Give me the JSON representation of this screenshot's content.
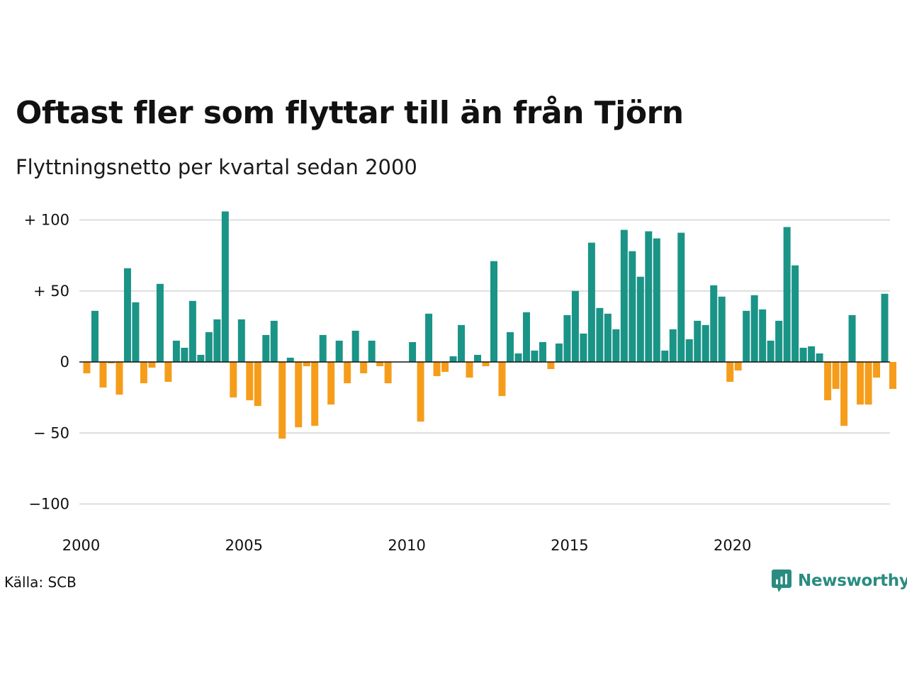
{
  "title": "Oftast fler som flyttar till än från Tjörn",
  "subtitle": "Flyttningsnetto per kvartal sedan 2000",
  "source": "Källa: SCB",
  "brand": {
    "name": "Newsworthy",
    "color": "#2a8c80",
    "icon": "newsworthy-logo-icon"
  },
  "colors": {
    "positive": "#1a9486",
    "negative": "#f59d1b",
    "grid": "#dddddd",
    "zero_line": "#111111"
  },
  "chart_data": {
    "type": "bar",
    "title": "Oftast fler som flyttar till än från Tjörn",
    "subtitle": "Flyttningsnetto per kvartal sedan 2000",
    "x_start": "2000 Q1",
    "x_interval": "quarter",
    "ylim": [
      -110,
      110
    ],
    "y_ticks": [
      {
        "value": 100,
        "label": "+ 100"
      },
      {
        "value": 50,
        "label": "+  50"
      },
      {
        "value": 0,
        "label": "0"
      },
      {
        "value": -50,
        "label": "− 50"
      },
      {
        "value": -100,
        "label": "−100"
      }
    ],
    "x_ticks": [
      {
        "year": 2000,
        "label": "2000"
      },
      {
        "year": 2005,
        "label": "2005"
      },
      {
        "year": 2010,
        "label": "2010"
      },
      {
        "year": 2015,
        "label": "2015"
      },
      {
        "year": 2020,
        "label": "2020"
      }
    ],
    "grid": true,
    "values": [
      -8,
      36,
      -18,
      -1,
      -23,
      66,
      42,
      -15,
      -4,
      55,
      -14,
      15,
      10,
      43,
      5,
      21,
      30,
      106,
      -25,
      30,
      -27,
      -31,
      19,
      29,
      -54,
      3,
      -46,
      -3,
      -45,
      19,
      -30,
      15,
      -15,
      22,
      -8,
      15,
      -3,
      -15,
      0,
      0,
      14,
      -42,
      34,
      -10,
      -7,
      4,
      26,
      -11,
      5,
      -3,
      71,
      -24,
      21,
      6,
      35,
      8,
      14,
      -5,
      13,
      33,
      50,
      20,
      84,
      38,
      34,
      23,
      93,
      78,
      60,
      92,
      87,
      8,
      23,
      91,
      16,
      29,
      26,
      54,
      46,
      -14,
      -6,
      36,
      47,
      37,
      15,
      29,
      95,
      68,
      10,
      11,
      6,
      -27,
      -19,
      -45,
      33,
      -30,
      -30,
      -11,
      48,
      -19
    ]
  }
}
